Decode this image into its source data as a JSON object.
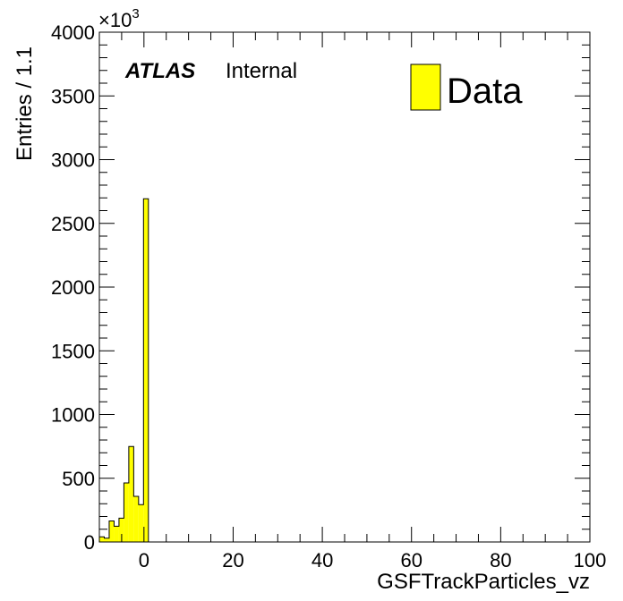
{
  "chart_data": {
    "type": "bar",
    "title": "",
    "xlabel": "GSFTrackParticles_vz",
    "ylabel": "Entries / 1.1",
    "y_multiplier_label": "×10",
    "y_multiplier_exp": "3",
    "xlim": [
      -10,
      100
    ],
    "ylim": [
      0,
      4000
    ],
    "bin_width": 1.1,
    "x_ticks": [
      "0",
      "20",
      "40",
      "60",
      "80",
      "100"
    ],
    "x_tick_values": [
      0,
      20,
      40,
      60,
      80,
      100
    ],
    "y_ticks": [
      "0",
      "500",
      "1000",
      "1500",
      "2000",
      "2500",
      "3000",
      "3500",
      "4000"
    ],
    "y_tick_values": [
      0,
      500,
      1000,
      1500,
      2000,
      2500,
      3000,
      3500,
      4000
    ],
    "bin_edges_start": -10,
    "values": [
      40,
      30,
      165,
      124,
      187,
      463,
      749,
      358,
      293,
      2693
    ],
    "fill_color": "#ffff00",
    "legend": {
      "entries": [
        "Data"
      ],
      "placement": "top-right"
    },
    "annotation": {
      "bold": "ATLAS",
      "normal": "Internal"
    },
    "grid": false
  }
}
